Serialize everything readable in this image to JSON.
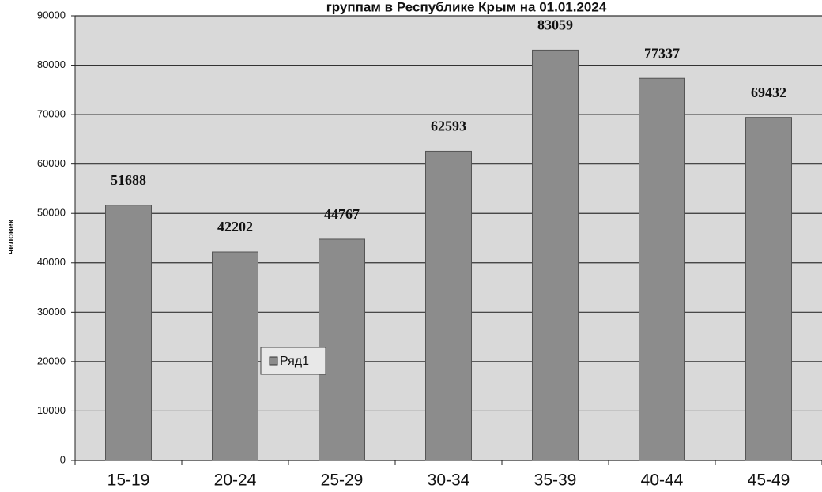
{
  "chart_data": {
    "type": "bar",
    "title": "группам в Республике Крым на 01.01.2024",
    "y_label": "человек",
    "categories": [
      "15-19",
      "20-24",
      "25-29",
      "30-34",
      "35-39",
      "40-44",
      "45-49"
    ],
    "series": [
      {
        "name": "Ряд1",
        "color": "#8c8c8c",
        "values": [
          51688,
          42202,
          44767,
          62593,
          83059,
          77337,
          69432
        ]
      }
    ],
    "ylim": [
      0,
      90000
    ],
    "yticks": [
      0,
      10000,
      20000,
      30000,
      40000,
      50000,
      60000,
      70000,
      80000,
      90000
    ],
    "grid": true
  }
}
